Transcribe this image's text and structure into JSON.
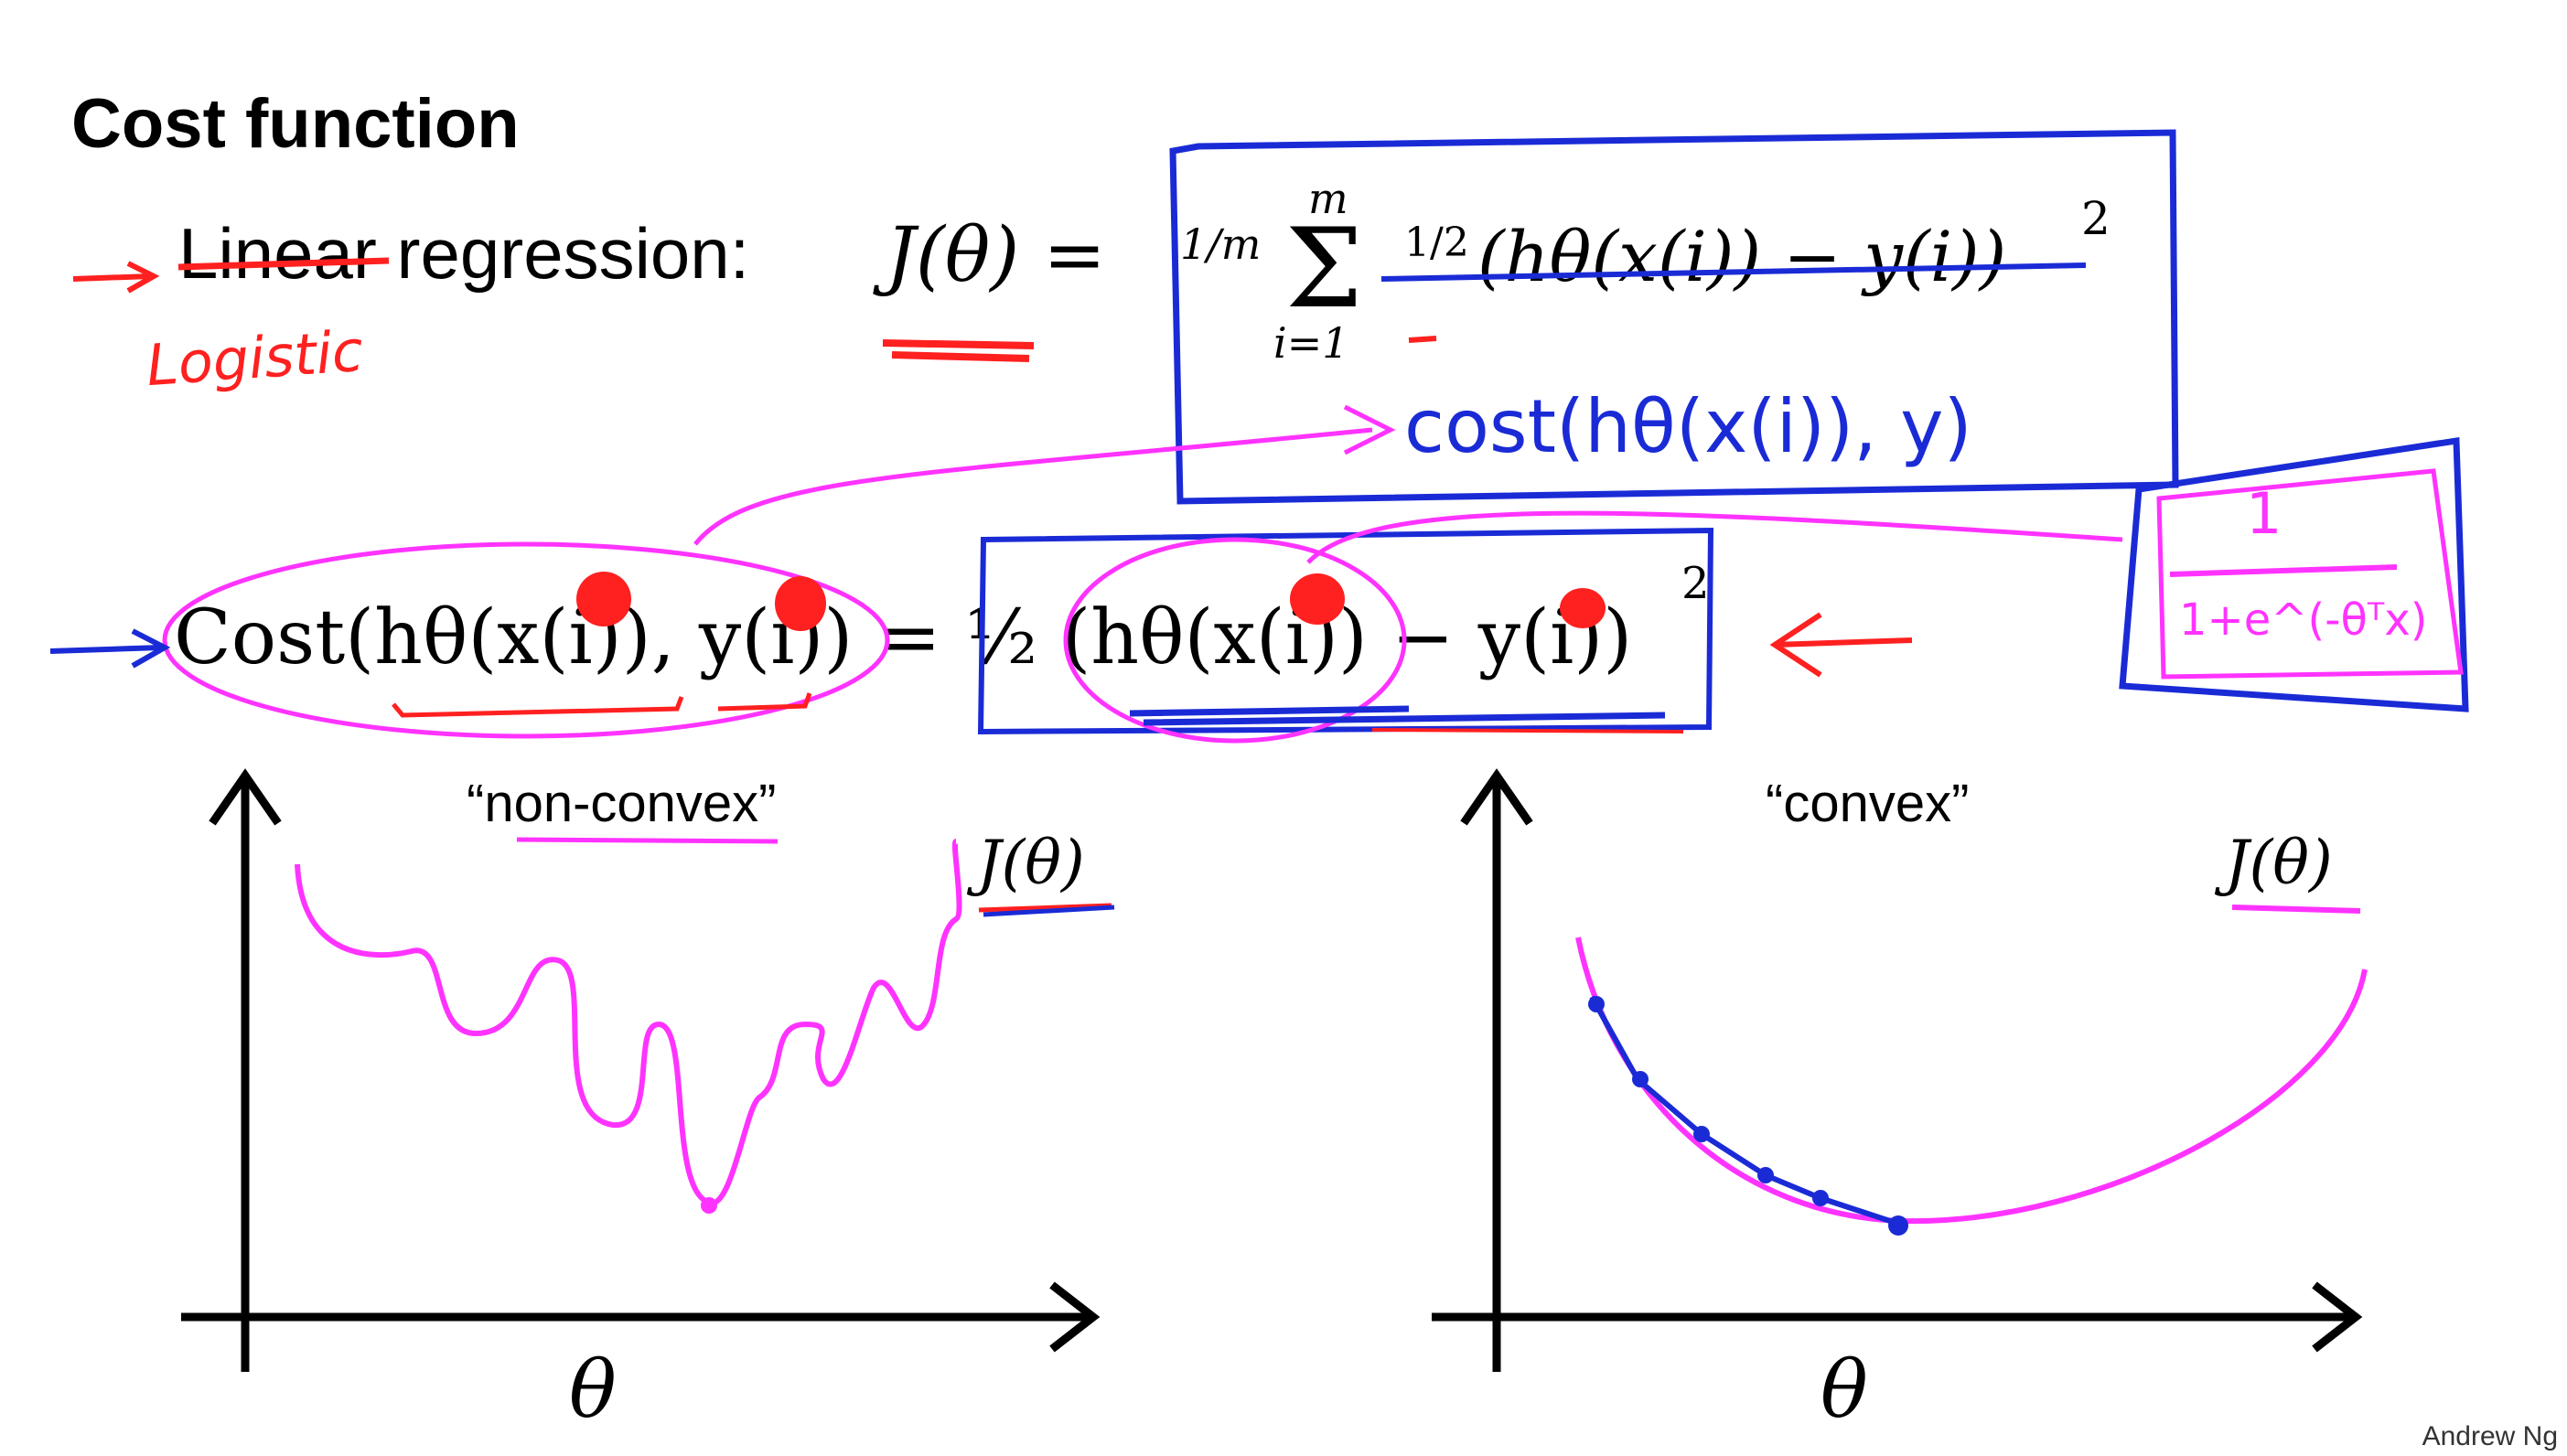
{
  "slide": {
    "title": "Cost function",
    "bullet_label": "Linear regression:",
    "bullet_label_word_struck": "Linear",
    "bullet_label_rest": "regression:",
    "cost_eq_lhs": "J(θ) =",
    "cost_eq_frac": "1/m",
    "cost_eq_sum": "Σ",
    "cost_eq_sum_top": "m",
    "cost_eq_sum_bottom": "i=1",
    "cost_eq_half": "1/2",
    "cost_eq_body": "(hθ(x(i)) − y(i))",
    "cost_eq_power": "2",
    "second_eq_lhs": "Cost(hθ(x(i)), y(i))",
    "second_eq_rhs": "= ½ (hθ(x(i)) − y(i))",
    "second_eq_power": "2",
    "label_nonconvex": "“non-convex”",
    "label_convex": "“convex”",
    "plot_left_ylabel": "J(θ)",
    "plot_right_ylabel": "J(θ)",
    "plot_left_xlabel": "θ",
    "plot_right_xlabel": "θ",
    "credit": "Andrew Ng"
  },
  "annotations": {
    "logistic": "Logistic",
    "cost_hand": "cost(hθ(x(i)), y)",
    "sigmoid_num": "1",
    "sigmoid_den": "1+e^(-θᵀx)"
  },
  "colors": {
    "ink": "#000000",
    "red": "#ff2020",
    "blue": "#1a2bd6",
    "magenta": "#ff33ff"
  }
}
